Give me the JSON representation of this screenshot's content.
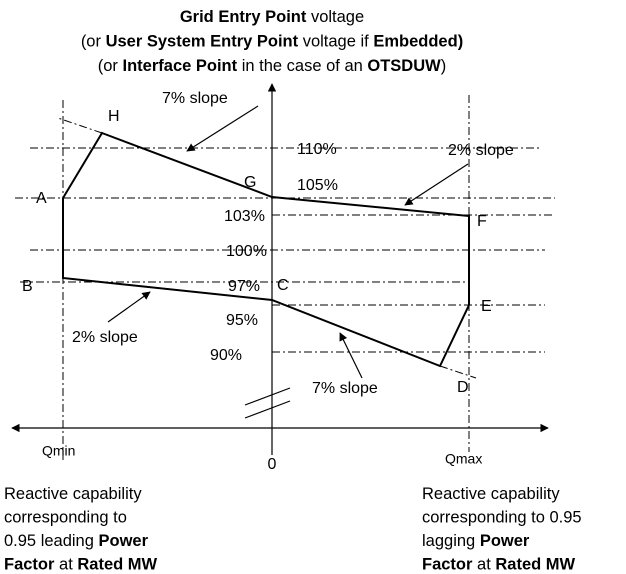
{
  "title": [
    [
      {
        "text": "Grid Entry Point",
        "bold": true
      },
      {
        "text": " voltage"
      }
    ],
    [
      {
        "text": "(or "
      },
      {
        "text": "User System Entry Point",
        "bold": true
      },
      {
        "text": " voltage if "
      },
      {
        "text": "Embedded)",
        "bold": true
      }
    ],
    [
      {
        "text": "(or "
      },
      {
        "text": "Interface Point",
        "bold": true
      },
      {
        "text": " in the case of an "
      },
      {
        "text": "OTSDUW",
        "bold": true
      },
      {
        "text": ")"
      }
    ]
  ],
  "point_labels": [
    "H",
    "G",
    "A",
    "F",
    "B",
    "C",
    "E",
    "D"
  ],
  "levels": [
    "110%",
    "105%",
    "103%",
    "100%",
    "97%",
    "95%",
    "90%"
  ],
  "slopes": [
    "7% slope",
    "2% slope",
    "2% slope",
    "7% slope"
  ],
  "axis": {
    "left": "Qmin",
    "origin": "0",
    "right": "Qmax"
  },
  "notes": {
    "left": [
      [
        {
          "text": "Reactive capability"
        }
      ],
      [
        {
          "text": "corresponding to"
        }
      ],
      [
        {
          "text": "0.95 leading "
        },
        {
          "text": "Power",
          "bold": true
        }
      ],
      [
        {
          "text": "Factor",
          "bold": true
        },
        {
          "text": " at "
        },
        {
          "text": "Rated MW",
          "bold": true
        }
      ]
    ],
    "right": [
      [
        {
          "text": "Reactive capability"
        }
      ],
      [
        {
          "text": "corresponding to 0.95"
        }
      ],
      [
        {
          "text": "lagging "
        },
        {
          "text": "Power",
          "bold": true
        }
      ],
      [
        {
          "text": "Factor",
          "bold": true
        },
        {
          "text": " at "
        },
        {
          "text": "Rated MW",
          "bold": true
        }
      ]
    ]
  }
}
